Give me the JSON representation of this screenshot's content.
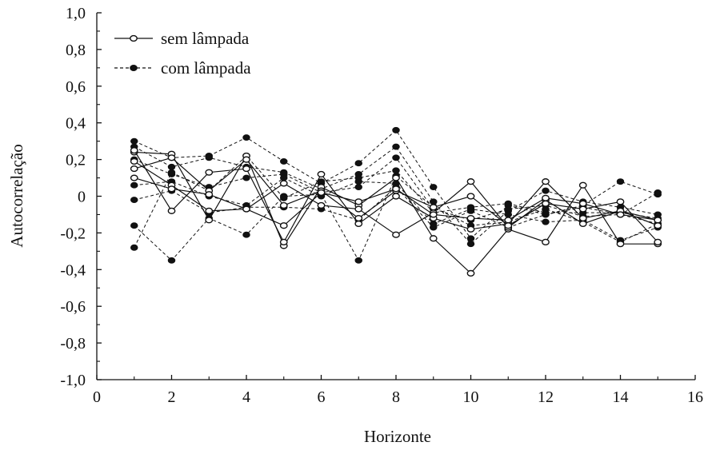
{
  "chart_data": {
    "type": "line",
    "title": "",
    "xlabel": "Horizonte",
    "ylabel": "Autocorrelação",
    "xlim": [
      0,
      16
    ],
    "ylim": [
      -1.0,
      1.0
    ],
    "x_ticks": [
      0,
      2,
      4,
      6,
      8,
      10,
      12,
      14,
      16
    ],
    "x_tick_labels": [
      "0",
      "2",
      "4",
      "6",
      "8",
      "10",
      "12",
      "14",
      "16"
    ],
    "y_ticks": [
      -1.0,
      -0.8,
      -0.6,
      -0.4,
      -0.2,
      0,
      0.2,
      0.4,
      0.6,
      0.8,
      1.0
    ],
    "y_tick_labels": [
      "-1,0",
      "-0,8",
      "-0,6",
      "-0,4",
      "-0,2",
      "0",
      "0,2",
      "0,4",
      "0,6",
      "0,8",
      "1,0"
    ],
    "grid": false,
    "legend_position": "top-left",
    "legend": [
      {
        "label": "sem lâmpada",
        "style": "solid",
        "marker": "open-circle"
      },
      {
        "label": "com lâmpada",
        "style": "dashed",
        "marker": "filled-circle"
      }
    ],
    "x": [
      1,
      2,
      3,
      4,
      5,
      6,
      7,
      8,
      9,
      10,
      11,
      12,
      13,
      14,
      15
    ],
    "series": [
      {
        "group": "sem lâmpada",
        "values": [
          0.24,
          0.23,
          -0.13,
          0.22,
          -0.27,
          0.05,
          -0.05,
          0.1,
          -0.23,
          -0.42,
          -0.18,
          -0.25,
          0.06,
          -0.26,
          -0.26
        ]
      },
      {
        "group": "sem lâmpada",
        "values": [
          0.25,
          -0.08,
          0.13,
          0.15,
          -0.25,
          0.12,
          -0.15,
          0.0,
          -0.12,
          -0.18,
          -0.15,
          0.08,
          -0.12,
          -0.08,
          -0.13
        ]
      },
      {
        "group": "sem lâmpada",
        "values": [
          0.19,
          0.06,
          -0.08,
          -0.07,
          0.07,
          -0.05,
          -0.07,
          -0.21,
          -0.09,
          0.08,
          -0.17,
          -0.02,
          -0.15,
          -0.08,
          -0.16
        ]
      },
      {
        "group": "sem lâmpada",
        "values": [
          0.15,
          0.21,
          0.03,
          0.2,
          -0.05,
          0.03,
          -0.12,
          0.03,
          -0.06,
          0.0,
          -0.16,
          -0.04,
          -0.07,
          -0.03,
          -0.25
        ]
      },
      {
        "group": "sem lâmpada",
        "values": [
          0.1,
          0.04,
          0.01,
          -0.07,
          -0.16,
          0.02,
          -0.03,
          0.04,
          -0.1,
          -0.12,
          -0.13,
          -0.01,
          -0.04,
          -0.1,
          -0.13
        ]
      },
      {
        "group": "com lâmpada",
        "values": [
          0.3,
          0.21,
          0.22,
          0.32,
          0.19,
          0.07,
          0.18,
          0.36,
          0.05,
          -0.23,
          -0.05,
          -0.1,
          -0.05,
          0.08,
          0.01
        ]
      },
      {
        "group": "com lâmpada",
        "values": [
          0.27,
          0.16,
          0.21,
          0.16,
          0.13,
          0.04,
          0.12,
          0.27,
          -0.03,
          -0.26,
          -0.08,
          0.03,
          -0.03,
          -0.06,
          -0.1
        ]
      },
      {
        "group": "com lâmpada",
        "values": [
          0.2,
          0.12,
          0.05,
          0.1,
          0.12,
          0.02,
          0.05,
          0.21,
          -0.07,
          -0.13,
          -0.07,
          -0.05,
          -0.11,
          -0.1,
          0.02
        ]
      },
      {
        "group": "com lâmpada",
        "values": [
          0.06,
          0.08,
          0.0,
          -0.05,
          0.1,
          0.0,
          0.08,
          0.07,
          -0.15,
          -0.07,
          -0.1,
          -0.14,
          -0.13,
          -0.24,
          -0.17
        ]
      },
      {
        "group": "com lâmpada",
        "values": [
          -0.02,
          0.03,
          -0.09,
          -0.06,
          -0.06,
          -0.07,
          -0.13,
          0.05,
          -0.17,
          -0.08,
          -0.17,
          -0.1,
          -0.06,
          -0.1,
          -0.15
        ]
      },
      {
        "group": "com lâmpada",
        "values": [
          -0.16,
          -0.35,
          -0.12,
          -0.21,
          0.0,
          0.01,
          -0.35,
          0.11,
          -0.06,
          -0.16,
          -0.14,
          -0.07,
          -0.14,
          -0.25,
          -0.15
        ]
      },
      {
        "group": "com lâmpada",
        "values": [
          -0.28,
          0.13,
          0.03,
          0.22,
          -0.01,
          0.08,
          0.1,
          0.14,
          -0.09,
          -0.06,
          -0.04,
          -0.09,
          -0.09,
          -0.09,
          -0.12
        ]
      }
    ]
  }
}
